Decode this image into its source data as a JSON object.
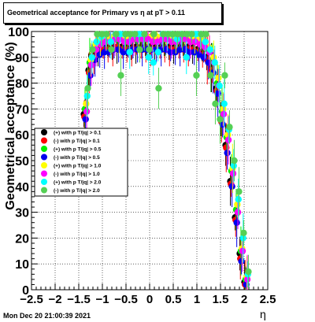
{
  "timestamp": "Mon Dec 20 21:00:39 2021",
  "chart_data": {
    "type": "scatter",
    "title": "Geometrical acceptance for Primary vs   η at pT > 0.11",
    "xlabel": "η",
    "ylabel": "Geometrical acceptance (%)",
    "xlim": [
      -2.5,
      2.5
    ],
    "ylim": [
      0,
      100
    ],
    "xticks": [
      "−2.5",
      "−2",
      "−1.5",
      "−1",
      "−0.5",
      "0",
      "0.5",
      "1",
      "1.5",
      "2",
      "2.5"
    ],
    "yticks": [
      "0",
      "10",
      "20",
      "30",
      "40",
      "50",
      "60",
      "70",
      "80",
      "90",
      "100"
    ],
    "grid": true,
    "legend_position": "middle-left",
    "x": [
      -1.35,
      -1.25,
      -1.15,
      -1.05,
      -0.95,
      -0.85,
      -0.75,
      -0.65,
      -0.55,
      -0.45,
      -0.35,
      -0.25,
      -0.15,
      -0.05,
      0.05,
      0.15,
      0.25,
      0.35,
      0.45,
      0.55,
      0.65,
      0.75,
      0.85,
      0.95,
      1.05,
      1.15,
      1.25,
      1.35,
      1.45,
      1.55,
      1.65,
      1.75,
      1.85,
      1.95,
      2.05
    ],
    "series": [
      {
        "name": "(+) with p T/|q| > 0.1",
        "color": "#000000",
        "values": [
          68,
          85,
          91,
          93,
          94,
          94,
          94,
          94,
          94,
          94,
          94,
          94,
          94,
          94,
          94,
          94,
          94,
          94,
          94,
          94,
          94,
          94,
          94,
          94,
          93,
          92,
          90,
          86,
          78,
          66,
          56,
          42,
          28,
          14,
          3
        ]
      },
      {
        "name": "(-) with p T/|q| > 0.1",
        "color": "#ff0000",
        "values": [
          67,
          84,
          90,
          92,
          93,
          93,
          93,
          94,
          93,
          93,
          93,
          93,
          93,
          93,
          93,
          93,
          93,
          93,
          93,
          93,
          93,
          93,
          93,
          93,
          92,
          91,
          89,
          85,
          77,
          65,
          55,
          41,
          27,
          12,
          2
        ]
      },
      {
        "name": "(+) with p T/|q| > 0.5",
        "color": "#00ee00",
        "values": [
          70,
          88,
          94,
          96,
          97,
          97,
          97,
          97,
          97,
          97,
          97,
          97,
          97,
          97,
          97,
          97,
          97,
          97,
          97,
          97,
          97,
          97,
          97,
          97,
          96,
          95,
          93,
          89,
          80,
          69,
          59,
          46,
          31,
          15,
          4
        ]
      },
      {
        "name": "(-) with p T/|q| > 0.5",
        "color": "#0000ee",
        "values": [
          66,
          83,
          89,
          91,
          92,
          92,
          93,
          93,
          92,
          92,
          93,
          93,
          93,
          93,
          93,
          93,
          93,
          93,
          92,
          92,
          93,
          93,
          92,
          92,
          91,
          90,
          88,
          84,
          76,
          64,
          53,
          40,
          26,
          11,
          2
        ]
      },
      {
        "name": "(+) with p T/|q| > 1.0",
        "color": "#ffff00",
        "values": [
          72,
          89,
          95,
          97,
          98,
          98,
          98,
          98,
          98,
          98,
          98,
          98,
          98,
          98,
          98,
          98,
          98,
          98,
          98,
          98,
          98,
          98,
          98,
          98,
          97,
          96,
          94,
          90,
          82,
          70,
          60,
          47,
          33,
          16,
          5
        ]
      },
      {
        "name": "(-) with p T/|q| > 1.0",
        "color": "#ff00ff",
        "values": [
          69,
          87,
          93,
          95,
          96,
          96,
          97,
          97,
          96,
          96,
          97,
          97,
          97,
          97,
          96,
          96,
          97,
          97,
          96,
          96,
          97,
          97,
          96,
          96,
          95,
          94,
          92,
          88,
          79,
          68,
          58,
          45,
          30,
          15,
          4
        ]
      },
      {
        "name": "(+) with p T/|q| > 2.0",
        "color": "#00ffff",
        "values": [
          75,
          90,
          96,
          98,
          99,
          96,
          99,
          99,
          99,
          92,
          99,
          99,
          99,
          90,
          88,
          92,
          99,
          99,
          99,
          97,
          99,
          90,
          99,
          99,
          99,
          96,
          93,
          88,
          79,
          72,
          62,
          48,
          35,
          20,
          6
        ]
      },
      {
        "name": "(-) with p T/|q| > 2.0",
        "color": "#55d055",
        "values": [
          78,
          93,
          99,
          99,
          99,
          93,
          99,
          83,
          99,
          99,
          99,
          93,
          99,
          93,
          99,
          78,
          99,
          99,
          99,
          99,
          99,
          99,
          99,
          83,
          99,
          99,
          83,
          72,
          66,
          83,
          63,
          50,
          38,
          22,
          7
        ]
      }
    ]
  }
}
